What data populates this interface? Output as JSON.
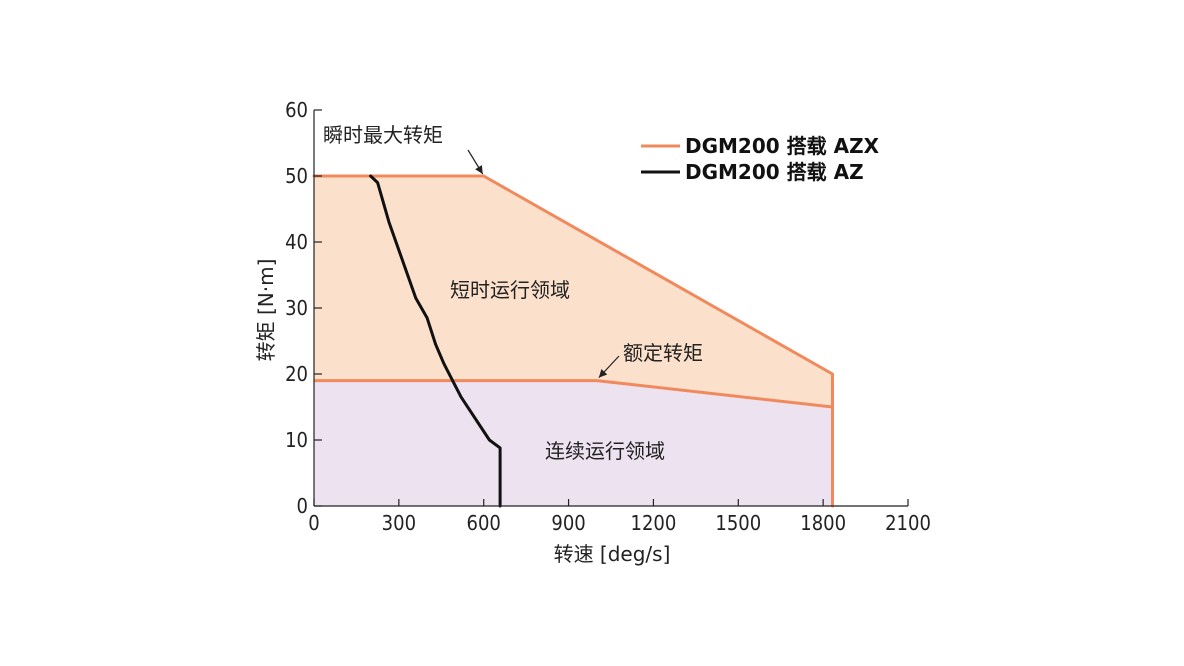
{
  "chart_data": {
    "type": "area",
    "title": "",
    "xlabel": "转速 [deg/s]",
    "ylabel": "转矩 [N·m]",
    "xlim": [
      0,
      2100
    ],
    "ylim": [
      0,
      60
    ],
    "xticks": [
      0,
      300,
      600,
      900,
      1200,
      1500,
      1800,
      2100
    ],
    "yticks": [
      0,
      10,
      20,
      30,
      40,
      50,
      60
    ],
    "grid": false,
    "legend_position": "top-right",
    "series": [
      {
        "name": "DGM200 搭载 AZX",
        "color": "#f08a5d",
        "points": [
          [
            0,
            50
          ],
          [
            600,
            50
          ],
          [
            1833,
            20
          ],
          [
            1833,
            0
          ]
        ]
      },
      {
        "name": "DGM200 搭载 AZ",
        "color": "#111111",
        "points": [
          [
            200,
            50
          ],
          [
            225,
            49
          ],
          [
            265,
            43
          ],
          [
            360,
            31.5
          ],
          [
            400,
            28.5
          ],
          [
            430,
            24.5
          ],
          [
            460,
            21.5
          ],
          [
            520,
            16.5
          ],
          [
            620,
            10
          ],
          [
            658,
            8.8
          ],
          [
            658,
            0
          ]
        ]
      }
    ],
    "regions": [
      {
        "label": "短时运行领域",
        "color": "#fbe0cb",
        "points": [
          [
            0,
            50
          ],
          [
            600,
            50
          ],
          [
            1833,
            20
          ],
          [
            1833,
            15
          ],
          [
            1000,
            19
          ],
          [
            0,
            19
          ]
        ]
      },
      {
        "label": "连续运行领域",
        "color": "#ede2ef",
        "points": [
          [
            0,
            19
          ],
          [
            1000,
            19
          ],
          [
            1833,
            15
          ],
          [
            1833,
            0
          ],
          [
            0,
            0
          ]
        ]
      }
    ],
    "rated_torque_line": {
      "points": [
        [
          0,
          19
        ],
        [
          1000,
          19
        ],
        [
          1833,
          15
        ],
        [
          1833,
          0
        ]
      ],
      "color": "#f08a5d"
    },
    "annotations": [
      {
        "text": "瞬时最大转矩",
        "x": 0,
        "y": 55.5,
        "arrow_to": [
          600,
          50
        ]
      },
      {
        "text": "额定转矩",
        "x": 1100,
        "y": 23.5,
        "arrow_to": [
          1000,
          19
        ]
      }
    ]
  }
}
